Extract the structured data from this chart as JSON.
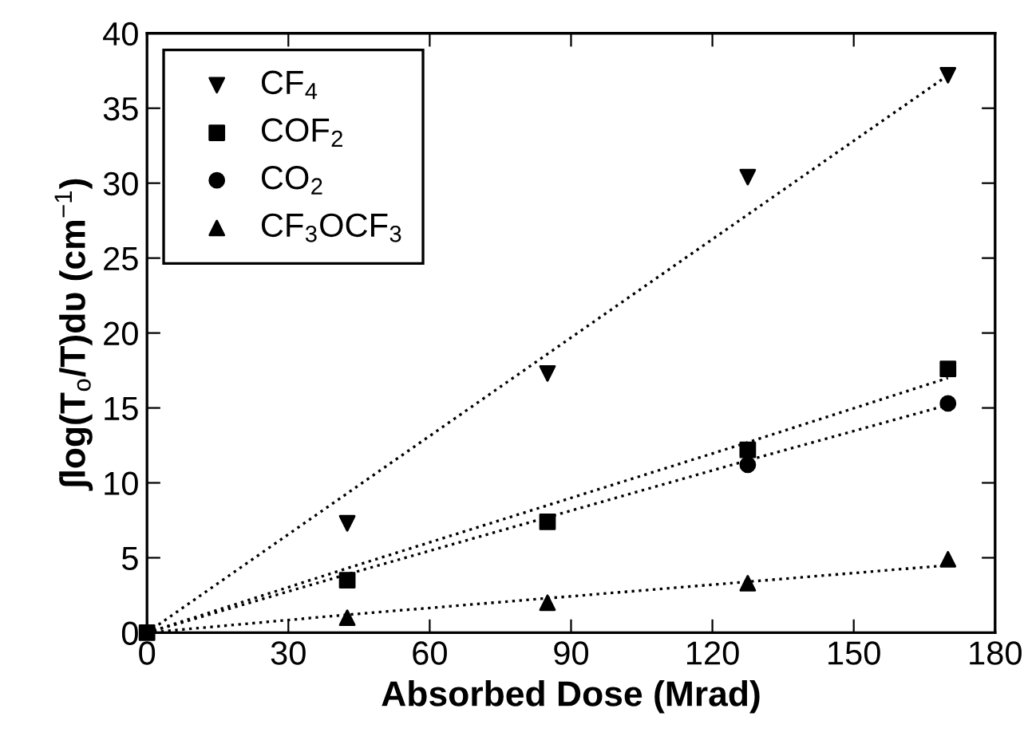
{
  "chart_data": {
    "type": "scatter",
    "xlabel": "Absorbed Dose (Mrad)",
    "ylabel": "∫log(T$_{o}$/T)dυ (cm$^{−1}$)",
    "x": [
      0,
      42.5,
      85,
      127.5,
      170
    ],
    "series": [
      {
        "name": "CF$_{4}$",
        "color": "#000000",
        "marker": "triangle_down",
        "values": [
          null,
          7.3,
          17.3,
          30.4,
          37.2
        ]
      },
      {
        "name": "COF$_{2}$",
        "color": "#000000",
        "marker": "square",
        "values": [
          0,
          3.5,
          7.4,
          12.2,
          17.6
        ]
      },
      {
        "name": "CO$_{2}$",
        "color": "#000000",
        "marker": "circle",
        "values": [
          null,
          null,
          null,
          11.2,
          15.3
        ]
      },
      {
        "name": "CF$_{3}$OCF$_{3}$",
        "color": "#000000",
        "marker": "triangle",
        "values": [
          null,
          1.0,
          2.0,
          3.3,
          4.9
        ]
      },
      {
        "type": "line",
        "color": "#000000",
        "line_style": "dotted",
        "marker": "none",
        "x": [
          0,
          42.5,
          85,
          127.5,
          170
        ],
        "values": [
          0,
          9.3,
          18.6,
          27.9,
          37.2
        ]
      },
      {
        "type": "line",
        "color": "#000000",
        "line_style": "dotted",
        "marker": "none",
        "x": [
          0,
          42.5,
          85,
          127.5,
          170
        ],
        "values": [
          0,
          4.3,
          8.5,
          12.7,
          17.0
        ]
      },
      {
        "type": "line",
        "color": "#000000",
        "line_style": "dotted",
        "marker": "none",
        "x": [
          0,
          42.5,
          85,
          127.5,
          170
        ],
        "values": [
          0,
          3.9,
          7.7,
          11.5,
          15.2
        ]
      },
      {
        "type": "line",
        "color": "#000000",
        "line_style": "dotted",
        "marker": "none",
        "x": [
          0,
          42.5,
          85,
          127.5,
          170
        ],
        "values": [
          0,
          1.2,
          2.3,
          3.4,
          4.5
        ]
      }
    ],
    "xlim": [
      0,
      180
    ],
    "xticks": [
      0,
      30,
      60,
      90,
      120,
      150,
      180
    ],
    "ylim": [
      0,
      40
    ],
    "yticks": [
      0,
      5,
      10,
      15,
      20,
      25,
      30,
      35,
      40
    ],
    "grid": false,
    "legend": "top left"
  }
}
